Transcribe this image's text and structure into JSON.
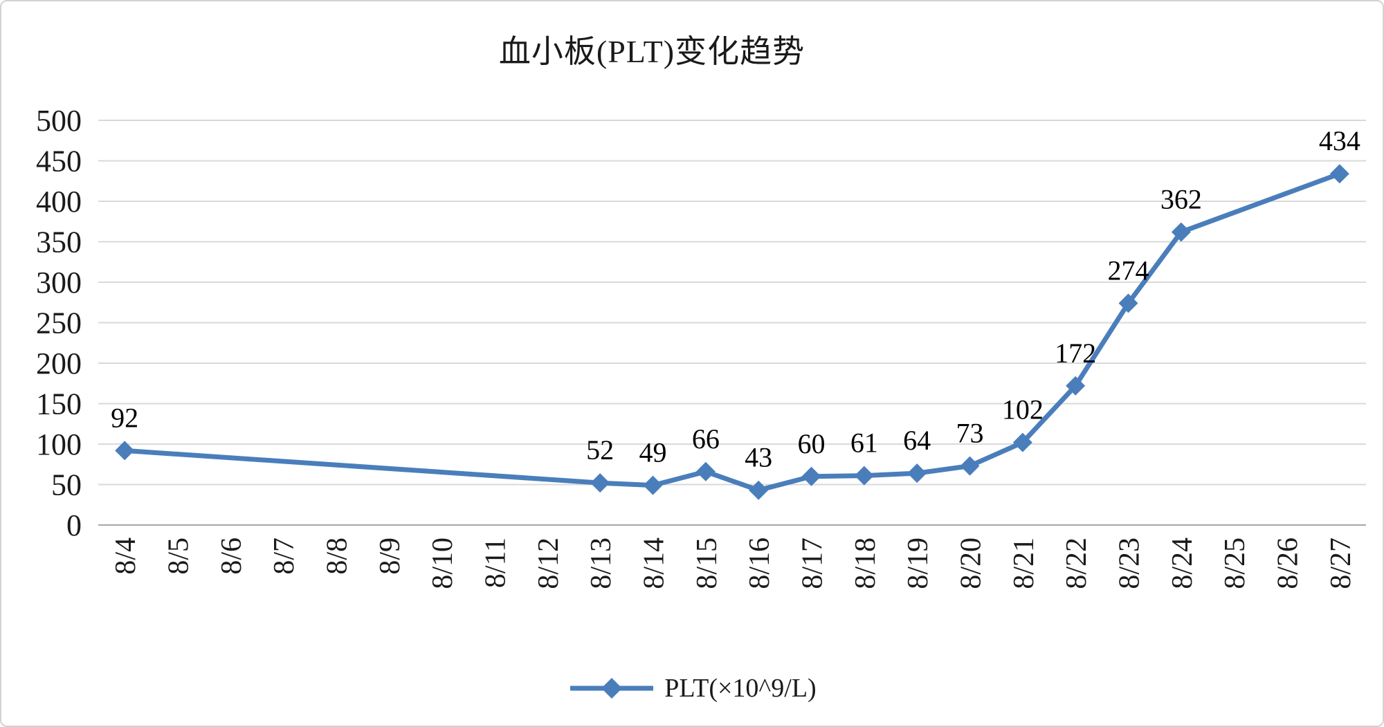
{
  "chart_data": {
    "type": "line",
    "title": "血小板(PLT)变化趋势",
    "categories": [
      "8/4",
      "8/5",
      "8/6",
      "8/7",
      "8/8",
      "8/9",
      "8/10",
      "8/11",
      "8/12",
      "8/13",
      "8/14",
      "8/15",
      "8/16",
      "8/17",
      "8/18",
      "8/19",
      "8/20",
      "8/21",
      "8/22",
      "8/23",
      "8/24",
      "8/25",
      "8/26",
      "8/27"
    ],
    "series": [
      {
        "name": "PLT(×10^9/L)",
        "values": [
          92,
          null,
          null,
          null,
          null,
          null,
          null,
          null,
          null,
          52,
          49,
          66,
          43,
          60,
          61,
          64,
          73,
          102,
          172,
          274,
          362,
          null,
          null,
          434
        ]
      }
    ],
    "xlabel": "",
    "ylabel": "",
    "ylim": [
      0,
      500
    ],
    "ytick_interval": 50,
    "grid": true,
    "data_labels": true,
    "legend_position": "bottom",
    "marker": "diamond",
    "colors": {
      "line": "#4A7EBB",
      "grid": "#D9D9D9",
      "axis": "#A6A6A6",
      "text": "#1a1a1a",
      "label": "#000000"
    }
  }
}
